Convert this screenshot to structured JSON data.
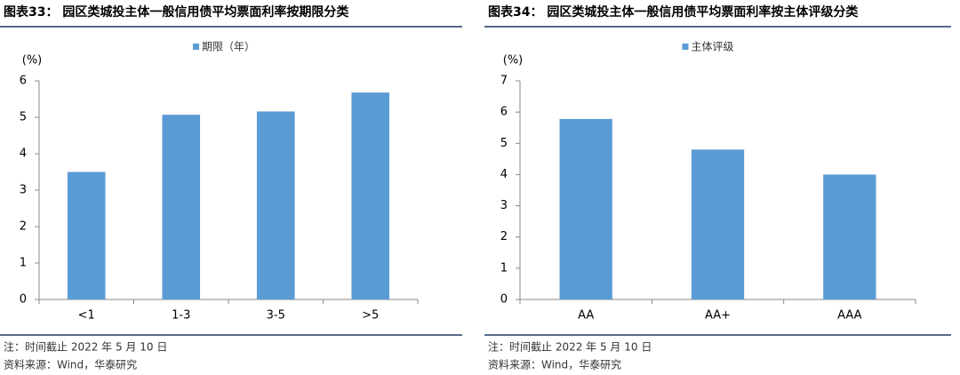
{
  "chart_data": [
    {
      "type": "bar",
      "title": "图表33： 园区类城投主体一般信用债平均票面利率按期限分类",
      "y_label": "(%)",
      "categories": [
        "<1",
        "1-3",
        "3-5",
        ">5"
      ],
      "series": [
        {
          "name": "期限（年）",
          "color": "#5b9bd5",
          "values": [
            3.5,
            5.07,
            5.16,
            5.68
          ]
        }
      ],
      "ylim": [
        0,
        6
      ],
      "yticks": [
        0,
        1,
        2,
        3,
        4,
        5,
        6
      ],
      "grid": false,
      "note": "注：时间截止 2022 年 5 月 10 日",
      "source": "资料来源：Wind，华泰研究"
    },
    {
      "type": "bar",
      "title": "图表34： 园区类城投主体一般信用债平均票面利率按主体评级分类",
      "y_label": "(%)",
      "categories": [
        "AA",
        "AA+",
        "AAA"
      ],
      "series": [
        {
          "name": "主体评级",
          "color": "#5b9bd5",
          "values": [
            5.78,
            4.8,
            4.0
          ]
        }
      ],
      "ylim": [
        0,
        7
      ],
      "yticks": [
        0,
        1,
        2,
        3,
        4,
        5,
        6,
        7
      ],
      "grid": false,
      "note": "注：时间截止 2022 年 5 月 10 日",
      "source": "资料来源：Wind，华泰研究"
    }
  ]
}
